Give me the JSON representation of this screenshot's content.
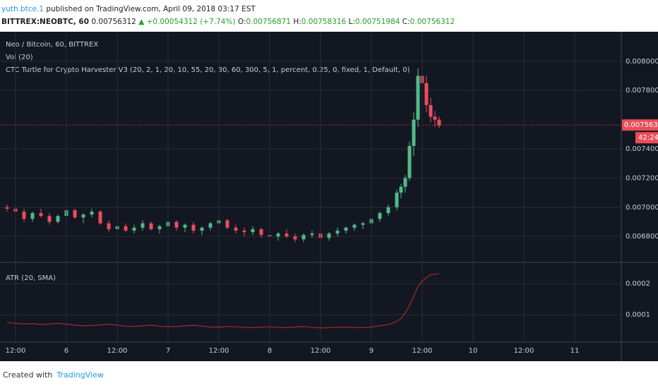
{
  "header": {
    "author": "yuth.btce.1",
    "published": "published on TradingView.com, April 09, 2018 03:17 EST",
    "symbol": "BITTREX:NEOBTC, 60",
    "price": "0.00756312",
    "change": "▲ +0.00054312 (+7.74%)",
    "o_label": "O:",
    "o": "0.00756871",
    "h_label": "H:",
    "h": "0.00758316",
    "l_label": "L:",
    "l": "0.00751984",
    "c_label": "C:",
    "c": "0.00756312"
  },
  "footer": {
    "created": "Created with",
    "brand": "TradingView"
  },
  "chart_data": [
    {
      "type": "candlestick",
      "title": "Neo / Bitcoin, 60, BITTREX",
      "annotations": [
        "Vol (20)",
        "CTC Turtle for Crypto Harvester V3 (20, 2, 1, 20, 10, 55, 20, 30, 60, 300, 5, 1, percent, 0.25, 0, fixed, 1, Default, 0)"
      ],
      "up_color": "#53b987",
      "down_color": "#eb4d5c",
      "grid": true,
      "last_price": 0.00756312,
      "countdown": "42:24",
      "xlim": [
        -3.67,
        143
      ],
      "ylim": [
        0.006622,
        0.008202
      ],
      "yticks": [
        {
          "value": 0.0068,
          "label": "0.00680000"
        },
        {
          "value": 0.007,
          "label": "0.00700000"
        },
        {
          "value": 0.0072,
          "label": "0.00720000"
        },
        {
          "value": 0.0074,
          "label": "0.00740000"
        },
        {
          "value": 0.0078,
          "label": "0.00780000"
        },
        {
          "value": 0.008,
          "label": "0.00800000"
        }
      ],
      "x": [
        -2,
        0,
        2,
        4,
        6,
        8,
        10,
        12,
        14,
        16,
        18,
        20,
        22,
        24,
        26,
        28,
        30,
        32,
        34,
        36,
        38,
        40,
        42,
        44,
        46,
        48,
        50,
        52,
        54,
        56,
        58,
        60,
        62,
        64,
        66,
        68,
        70,
        72,
        74,
        76,
        78,
        80,
        82,
        84,
        86,
        88,
        90,
        91,
        92,
        93,
        94,
        95,
        96,
        97,
        98,
        99,
        100
      ],
      "open": [
        0.007,
        0.00699,
        0.00697,
        0.00692,
        0.00696,
        0.00694,
        0.0069,
        0.00694,
        0.00698,
        0.00693,
        0.00695,
        0.00697,
        0.00689,
        0.00685,
        0.00687,
        0.00684,
        0.00686,
        0.00689,
        0.00685,
        0.00687,
        0.0069,
        0.00686,
        0.00688,
        0.00684,
        0.00686,
        0.00689,
        0.00691,
        0.00686,
        0.00684,
        0.00683,
        0.00685,
        0.00681,
        0.0068,
        0.00682,
        0.0068,
        0.00678,
        0.00681,
        0.00682,
        0.00679,
        0.00682,
        0.00684,
        0.00686,
        0.00688,
        0.00689,
        0.00692,
        0.00696,
        0.007,
        0.0071,
        0.00714,
        0.0072,
        0.00742,
        0.0076,
        0.0079,
        0.00785,
        0.0077,
        0.00762,
        0.0076
      ],
      "high": [
        0.00702,
        0.00701,
        0.00699,
        0.00697,
        0.00699,
        0.00696,
        0.00695,
        0.007,
        0.00699,
        0.00696,
        0.00699,
        0.00698,
        0.00691,
        0.00688,
        0.00689,
        0.00688,
        0.00691,
        0.0069,
        0.00688,
        0.00692,
        0.00691,
        0.00689,
        0.0069,
        0.00687,
        0.0069,
        0.00693,
        0.00692,
        0.00688,
        0.00686,
        0.00687,
        0.00686,
        0.00684,
        0.00683,
        0.00685,
        0.00682,
        0.00682,
        0.00684,
        0.00684,
        0.00683,
        0.00686,
        0.00687,
        0.00689,
        0.0069,
        0.00693,
        0.00697,
        0.00702,
        0.00712,
        0.00716,
        0.00722,
        0.00745,
        0.00765,
        0.00795,
        0.00797,
        0.0079,
        0.00775,
        0.00766,
        0.00762
      ],
      "low": [
        0.00697,
        0.00695,
        0.0069,
        0.0069,
        0.00693,
        0.00688,
        0.00689,
        0.00692,
        0.00692,
        0.00689,
        0.00693,
        0.00688,
        0.00683,
        0.00681,
        0.00683,
        0.00682,
        0.00684,
        0.00684,
        0.00682,
        0.00685,
        0.00684,
        0.00683,
        0.00682,
        0.00681,
        0.00684,
        0.00686,
        0.00685,
        0.00682,
        0.0068,
        0.00681,
        0.00679,
        0.00678,
        0.00677,
        0.00679,
        0.00676,
        0.00676,
        0.00679,
        0.00678,
        0.00677,
        0.0068,
        0.00682,
        0.00684,
        0.00685,
        0.00687,
        0.0069,
        0.00694,
        0.00698,
        0.00706,
        0.0071,
        0.00718,
        0.00735,
        0.00755,
        0.0077,
        0.00765,
        0.00758,
        0.00755,
        0.00754
      ],
      "close": [
        0.00699,
        0.00697,
        0.00692,
        0.00696,
        0.00694,
        0.0069,
        0.00694,
        0.00698,
        0.00693,
        0.00695,
        0.00697,
        0.00689,
        0.00685,
        0.00687,
        0.00684,
        0.00686,
        0.00689,
        0.00685,
        0.00687,
        0.0069,
        0.00686,
        0.00688,
        0.00684,
        0.00686,
        0.00689,
        0.00691,
        0.00686,
        0.00684,
        0.00683,
        0.00685,
        0.00681,
        0.0068,
        0.00682,
        0.0068,
        0.00678,
        0.00681,
        0.00682,
        0.00679,
        0.00682,
        0.00684,
        0.00686,
        0.00688,
        0.00689,
        0.00692,
        0.00696,
        0.007,
        0.0071,
        0.00714,
        0.0072,
        0.00742,
        0.0076,
        0.0079,
        0.00785,
        0.0077,
        0.00762,
        0.0076,
        0.00756
      ]
    },
    {
      "type": "line",
      "title": "ATR (20, SMA)",
      "color": "#a52a2a",
      "grid": true,
      "xlim": [
        -3.67,
        143
      ],
      "ylim": [
        1.14e-05,
        0.0002614
      ],
      "yticks": [
        0.0001,
        0.0002
      ],
      "xticks": [
        {
          "value": 0,
          "label": "12:00"
        },
        {
          "value": 12,
          "label": "6"
        },
        {
          "value": 24,
          "label": "12:00"
        },
        {
          "value": 36,
          "label": "7"
        },
        {
          "value": 48,
          "label": "12:00"
        },
        {
          "value": 60,
          "label": "8"
        },
        {
          "value": 72,
          "label": "12:00"
        },
        {
          "value": 84,
          "label": "9"
        },
        {
          "value": 96,
          "label": "12:00"
        },
        {
          "value": 108,
          "label": "10"
        },
        {
          "value": 120,
          "label": "12:00"
        },
        {
          "value": 132,
          "label": "11"
        }
      ],
      "x": [
        -2,
        0,
        2,
        4,
        6,
        8,
        10,
        12,
        14,
        16,
        18,
        20,
        22,
        24,
        26,
        28,
        30,
        32,
        34,
        36,
        38,
        40,
        42,
        44,
        46,
        48,
        50,
        52,
        54,
        56,
        58,
        60,
        62,
        64,
        66,
        68,
        70,
        72,
        74,
        76,
        78,
        80,
        82,
        84,
        86,
        88,
        90,
        91,
        92,
        93,
        94,
        95,
        96,
        97,
        98,
        99,
        100
      ],
      "values": [
        7.5e-05,
        7.2e-05,
        7e-05,
        7.1e-05,
        6.8e-05,
        7e-05,
        7.2e-05,
        6.9e-05,
        6.6e-05,
        6.4e-05,
        6.5e-05,
        6.7e-05,
        6.9e-05,
        6.6e-05,
        6.3e-05,
        6.2e-05,
        6.4e-05,
        6.6e-05,
        6.3e-05,
        6.1e-05,
        6.2e-05,
        6.4e-05,
        6.6e-05,
        6.3e-05,
        6e-05,
        6e-05,
        6.2e-05,
        6.1e-05,
        5.9e-05,
        5.8e-05,
        6e-05,
        6.1e-05,
        5.9e-05,
        5.8e-05,
        6e-05,
        6.2e-05,
        5.9e-05,
        5.7e-05,
        5.8e-05,
        6e-05,
        6e-05,
        5.9e-05,
        5.8e-05,
        6e-05,
        6.4e-05,
        6.8e-05,
        7.8e-05,
        8.8e-05,
        0.000105,
        0.00013,
        0.00016,
        0.00019,
        0.000208,
        0.00022,
        0.000228,
        0.00023,
        0.000232
      ]
    }
  ]
}
